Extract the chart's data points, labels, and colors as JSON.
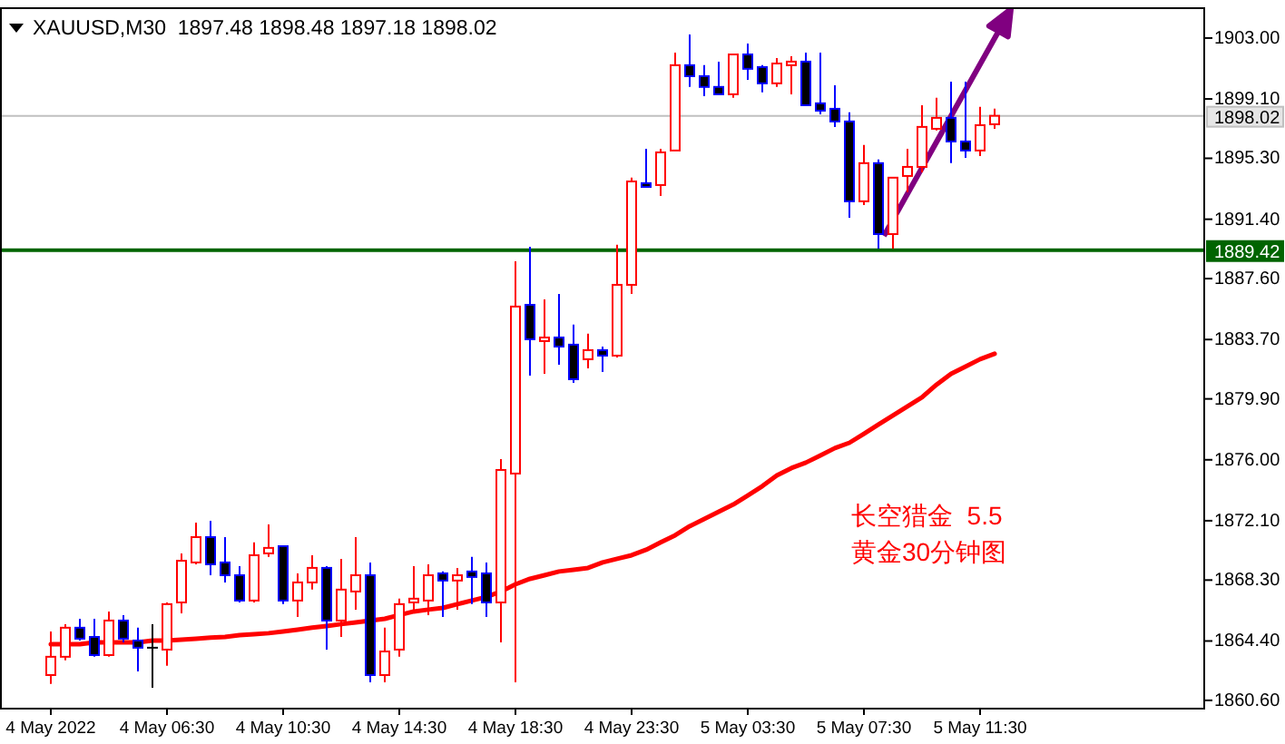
{
  "chart_data": {
    "type": "candlestick",
    "title": "XAUUSD,M30  1897.48 1898.48 1897.18 1898.02",
    "categories": [
      "4 May 2022",
      null,
      null,
      null,
      null,
      null,
      null,
      null,
      "4 May 06:30",
      null,
      null,
      null,
      null,
      null,
      null,
      null,
      "4 May 10:30",
      null,
      null,
      null,
      null,
      null,
      null,
      null,
      "4 May 14:30",
      null,
      null,
      null,
      null,
      null,
      null,
      null,
      "4 May 18:30",
      null,
      null,
      null,
      null,
      null,
      null,
      null,
      "4 May 23:30",
      null,
      null,
      null,
      null,
      null,
      null,
      null,
      "5 May 03:30",
      null,
      null,
      null,
      null,
      null,
      null,
      null,
      "5 May 07:30",
      null,
      null,
      null,
      null,
      null,
      null,
      null,
      "5 May 11:30",
      null
    ],
    "ohlc": [
      [
        1862.22,
        1865.01,
        1861.65,
        1863.39
      ],
      [
        1863.39,
        1865.48,
        1863.16,
        1865.25
      ],
      [
        1865.25,
        1865.82,
        1864.43,
        1864.55
      ],
      [
        1864.66,
        1865.82,
        1863.39,
        1863.5
      ],
      [
        1863.5,
        1866.29,
        1863.39,
        1865.71
      ],
      [
        1865.71,
        1866.06,
        1864.31,
        1864.55
      ],
      [
        1864.43,
        1865.25,
        1862.46,
        1863.97
      ],
      [
        1863.97,
        1865.48,
        1861.41,
        1863.97
      ],
      [
        1863.85,
        1866.87,
        1862.81,
        1866.76
      ],
      [
        1866.87,
        1870.01,
        1866.17,
        1869.54
      ],
      [
        1869.43,
        1871.98,
        1869.31,
        1871.05
      ],
      [
        1871.05,
        1872.1,
        1868.61,
        1869.31
      ],
      [
        1869.43,
        1871.05,
        1868.15,
        1868.61
      ],
      [
        1868.61,
        1869.19,
        1866.87,
        1866.99
      ],
      [
        1866.99,
        1870.71,
        1866.87,
        1869.89
      ],
      [
        1870.01,
        1871.87,
        1869.78,
        1870.36
      ],
      [
        1870.47,
        1870.47,
        1866.76,
        1866.99
      ],
      [
        1866.99,
        1868.73,
        1865.94,
        1868.15
      ],
      [
        1868.15,
        1869.89,
        1867.69,
        1869.08
      ],
      [
        1869.08,
        1869.19,
        1863.85,
        1865.71
      ],
      [
        1865.71,
        1869.66,
        1864.66,
        1867.69
      ],
      [
        1867.57,
        1871.05,
        1866.41,
        1868.61
      ],
      [
        1868.61,
        1869.43,
        1861.76,
        1862.22
      ],
      [
        1862.22,
        1865.25,
        1861.76,
        1863.73
      ],
      [
        1863.85,
        1867.11,
        1863.39,
        1866.76
      ],
      [
        1866.87,
        1869.19,
        1866.17,
        1867.11
      ],
      [
        1866.99,
        1869.31,
        1866.06,
        1868.61
      ],
      [
        1868.73,
        1868.85,
        1865.94,
        1868.27
      ],
      [
        1868.27,
        1869.08,
        1866.41,
        1868.61
      ],
      [
        1868.85,
        1869.78,
        1866.76,
        1868.5
      ],
      [
        1868.73,
        1869.43,
        1865.94,
        1866.87
      ],
      [
        1866.87,
        1876.05,
        1864.31,
        1875.35
      ],
      [
        1875.12,
        1888.71,
        1861.76,
        1885.81
      ],
      [
        1885.92,
        1889.64,
        1881.39,
        1883.72
      ],
      [
        1883.6,
        1886.27,
        1881.51,
        1883.83
      ],
      [
        1883.83,
        1886.62,
        1882.09,
        1883.25
      ],
      [
        1883.37,
        1884.65,
        1880.93,
        1881.16
      ],
      [
        1882.44,
        1884.07,
        1881.86,
        1883.02
      ],
      [
        1883.02,
        1883.25,
        1881.62,
        1882.67
      ],
      [
        1882.67,
        1889.76,
        1882.55,
        1887.2
      ],
      [
        1887.2,
        1894.06,
        1886.62,
        1893.82
      ],
      [
        1893.71,
        1895.91,
        1893.47,
        1893.47
      ],
      [
        1893.59,
        1895.91,
        1892.89,
        1895.68
      ],
      [
        1895.8,
        1902.07,
        1895.8,
        1901.26
      ],
      [
        1901.26,
        1903.23,
        1899.87,
        1900.56
      ],
      [
        1900.56,
        1901.26,
        1899.28,
        1899.87
      ],
      [
        1899.87,
        1901.49,
        1899.4,
        1899.4
      ],
      [
        1899.4,
        1901.95,
        1899.17,
        1901.95
      ],
      [
        1901.95,
        1902.65,
        1900.33,
        1901.03
      ],
      [
        1901.14,
        1901.26,
        1899.52,
        1900.1
      ],
      [
        1900.1,
        1901.72,
        1899.87,
        1901.37
      ],
      [
        1901.26,
        1901.84,
        1899.4,
        1901.49
      ],
      [
        1901.49,
        1902.07,
        1898.7,
        1898.7
      ],
      [
        1898.82,
        1902.07,
        1898.12,
        1898.35
      ],
      [
        1898.47,
        1899.98,
        1897.31,
        1897.66
      ],
      [
        1897.66,
        1898.24,
        1891.5,
        1892.55
      ],
      [
        1892.55,
        1896.15,
        1892.31,
        1894.99
      ],
      [
        1894.99,
        1895.22,
        1889.52,
        1890.45
      ],
      [
        1890.45,
        1894.06,
        1889.52,
        1894.06
      ],
      [
        1894.17,
        1895.91,
        1893.13,
        1894.75
      ],
      [
        1894.75,
        1898.7,
        1894.4,
        1897.31
      ],
      [
        1897.19,
        1899.17,
        1897.08,
        1897.89
      ],
      [
        1897.89,
        1900.21,
        1894.99,
        1896.38
      ],
      [
        1896.38,
        1900.21,
        1895.33,
        1895.8
      ],
      [
        1895.8,
        1898.59,
        1895.45,
        1897.42
      ],
      [
        1897.48,
        1898.48,
        1897.18,
        1898.02
      ]
    ],
    "series": [
      {
        "type": "line",
        "color": "#ff0000",
        "values": [
          1864.2,
          1864.2,
          1864.2,
          1864.31,
          1864.31,
          1864.31,
          1864.31,
          1864.43,
          1864.43,
          1864.49,
          1864.55,
          1864.61,
          1864.66,
          1864.78,
          1864.84,
          1864.9,
          1865.01,
          1865.13,
          1865.25,
          1865.36,
          1865.48,
          1865.59,
          1865.71,
          1865.82,
          1866.06,
          1866.29,
          1866.41,
          1866.52,
          1866.76,
          1866.99,
          1867.22,
          1867.57,
          1868.03,
          1868.38,
          1868.61,
          1868.85,
          1868.96,
          1869.08,
          1869.43,
          1869.66,
          1869.89,
          1870.24,
          1870.71,
          1871.17,
          1871.75,
          1872.21,
          1872.68,
          1873.14,
          1873.72,
          1874.31,
          1875.0,
          1875.47,
          1875.82,
          1876.28,
          1876.75,
          1877.09,
          1877.67,
          1878.26,
          1878.84,
          1879.42,
          1880.0,
          1880.81,
          1881.51,
          1881.97,
          1882.44,
          1882.79
        ]
      }
    ],
    "ylim": [
      1860.13,
      1904.97
    ],
    "yticks": [
      {
        "value": 1860.6,
        "label": "1860.60"
      },
      {
        "value": 1864.4,
        "label": "1864.40"
      },
      {
        "value": 1868.3,
        "label": "1868.30"
      },
      {
        "value": 1872.1,
        "label": "1872.10"
      },
      {
        "value": 1876.0,
        "label": "1876.00"
      },
      {
        "value": 1879.9,
        "label": "1879.90"
      },
      {
        "value": 1883.7,
        "label": "1883.70"
      },
      {
        "value": 1887.6,
        "label": "1887.60"
      },
      {
        "value": 1891.4,
        "label": "1891.40"
      },
      {
        "value": 1895.3,
        "label": "1895.30"
      },
      {
        "value": 1899.1,
        "label": "1899.10"
      },
      {
        "value": 1903.0,
        "label": "1903.00"
      }
    ],
    "ref_lines": [
      {
        "axis": "y",
        "value": 1898.02,
        "label": "1898.02",
        "color": "#c0c0c0"
      },
      {
        "axis": "y",
        "value": 1889.42,
        "label": "1889.42",
        "color": "#006400"
      }
    ],
    "annotations": [
      "长空猎金  5.5",
      "黄金30分钟图"
    ],
    "grid": false
  }
}
